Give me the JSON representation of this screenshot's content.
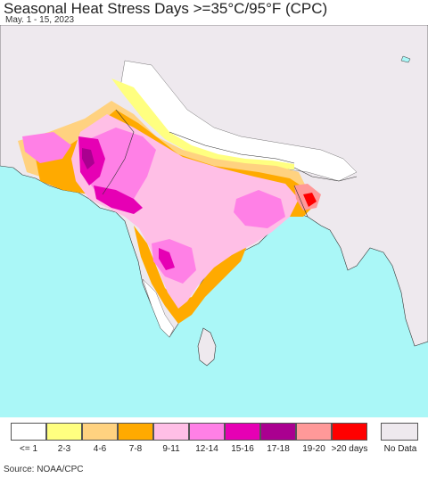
{
  "title": "Seasonal Heat Stress Days >=35°C/95°F (CPC)",
  "subtitle": "May. 1 - 15, 2023",
  "source": "Source: NOAA/CPC",
  "colors": {
    "ocean": "#aaf7f7",
    "land_nodata": "#eee9ee",
    "land_border": "#333333"
  },
  "legend": {
    "items": [
      {
        "label": "<= 1",
        "color": "#ffffff"
      },
      {
        "label": "2-3",
        "color": "#ffff80"
      },
      {
        "label": "4-6",
        "color": "#ffd280"
      },
      {
        "label": "7-8",
        "color": "#ffaa00"
      },
      {
        "label": "9-11",
        "color": "#ffbfe6"
      },
      {
        "label": "12-14",
        "color": "#ff80e6"
      },
      {
        "label": "15-16",
        "color": "#e600b4"
      },
      {
        "label": "17-18",
        "color": "#aa0090"
      },
      {
        "label": "19-20",
        "color": "#ff9999"
      },
      {
        "label": ">20 days",
        "color": "#ff0000"
      }
    ],
    "nodata": {
      "label": "No Data",
      "color": "#eee9ee"
    }
  }
}
